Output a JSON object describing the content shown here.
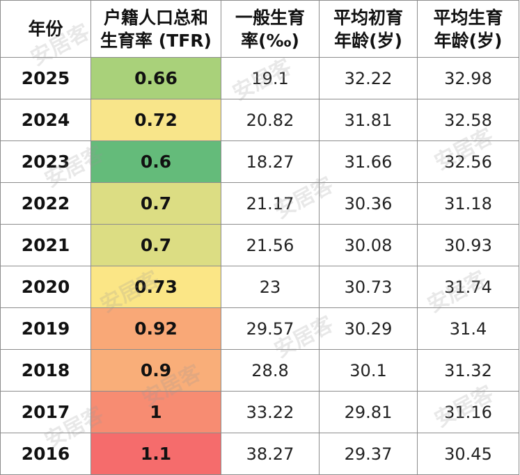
{
  "table": {
    "headers": {
      "year": "年份",
      "tfr_line1": "户籍人口总和",
      "tfr_line2": "生育率 (TFR)",
      "gfr_line1": "一般生育",
      "gfr_line2": "率(‰)",
      "first_age_line1": "平均初育",
      "first_age_line2": "年龄(岁)",
      "avg_age_line1": "平均生育",
      "avg_age_line2": "年龄(岁)"
    },
    "rows": [
      {
        "year": "2025",
        "tfr": "0.66",
        "gfr": "19.1",
        "first_age": "32.22",
        "avg_age": "32.98",
        "tfr_color": "#a9d17a"
      },
      {
        "year": "2024",
        "tfr": "0.72",
        "gfr": "20.82",
        "first_age": "31.81",
        "avg_age": "32.58",
        "tfr_color": "#f8e58a"
      },
      {
        "year": "2023",
        "tfr": "0.6",
        "gfr": "18.27",
        "first_age": "31.66",
        "avg_age": "32.56",
        "tfr_color": "#64bb7a"
      },
      {
        "year": "2022",
        "tfr": "0.7",
        "gfr": "21.17",
        "first_age": "30.36",
        "avg_age": "31.18",
        "tfr_color": "#dcdd83"
      },
      {
        "year": "2021",
        "tfr": "0.7",
        "gfr": "21.56",
        "first_age": "30.08",
        "avg_age": "30.93",
        "tfr_color": "#dcdd83"
      },
      {
        "year": "2020",
        "tfr": "0.73",
        "gfr": "23",
        "first_age": "30.73",
        "avg_age": "31.74",
        "tfr_color": "#fbe686"
      },
      {
        "year": "2019",
        "tfr": "0.92",
        "gfr": "29.57",
        "first_age": "30.29",
        "avg_age": "31.4",
        "tfr_color": "#f9a877"
      },
      {
        "year": "2018",
        "tfr": "0.9",
        "gfr": "28.8",
        "first_age": "30.1",
        "avg_age": "31.32",
        "tfr_color": "#f9ae79"
      },
      {
        "year": "2017",
        "tfr": "1",
        "gfr": "33.22",
        "first_age": "29.81",
        "avg_age": "31.16",
        "tfr_color": "#f78c72"
      },
      {
        "year": "2016",
        "tfr": "1.1",
        "gfr": "38.27",
        "first_age": "29.37",
        "avg_age": "30.45",
        "tfr_color": "#f56c6c"
      }
    ]
  },
  "watermark": {
    "text": "安居客"
  }
}
